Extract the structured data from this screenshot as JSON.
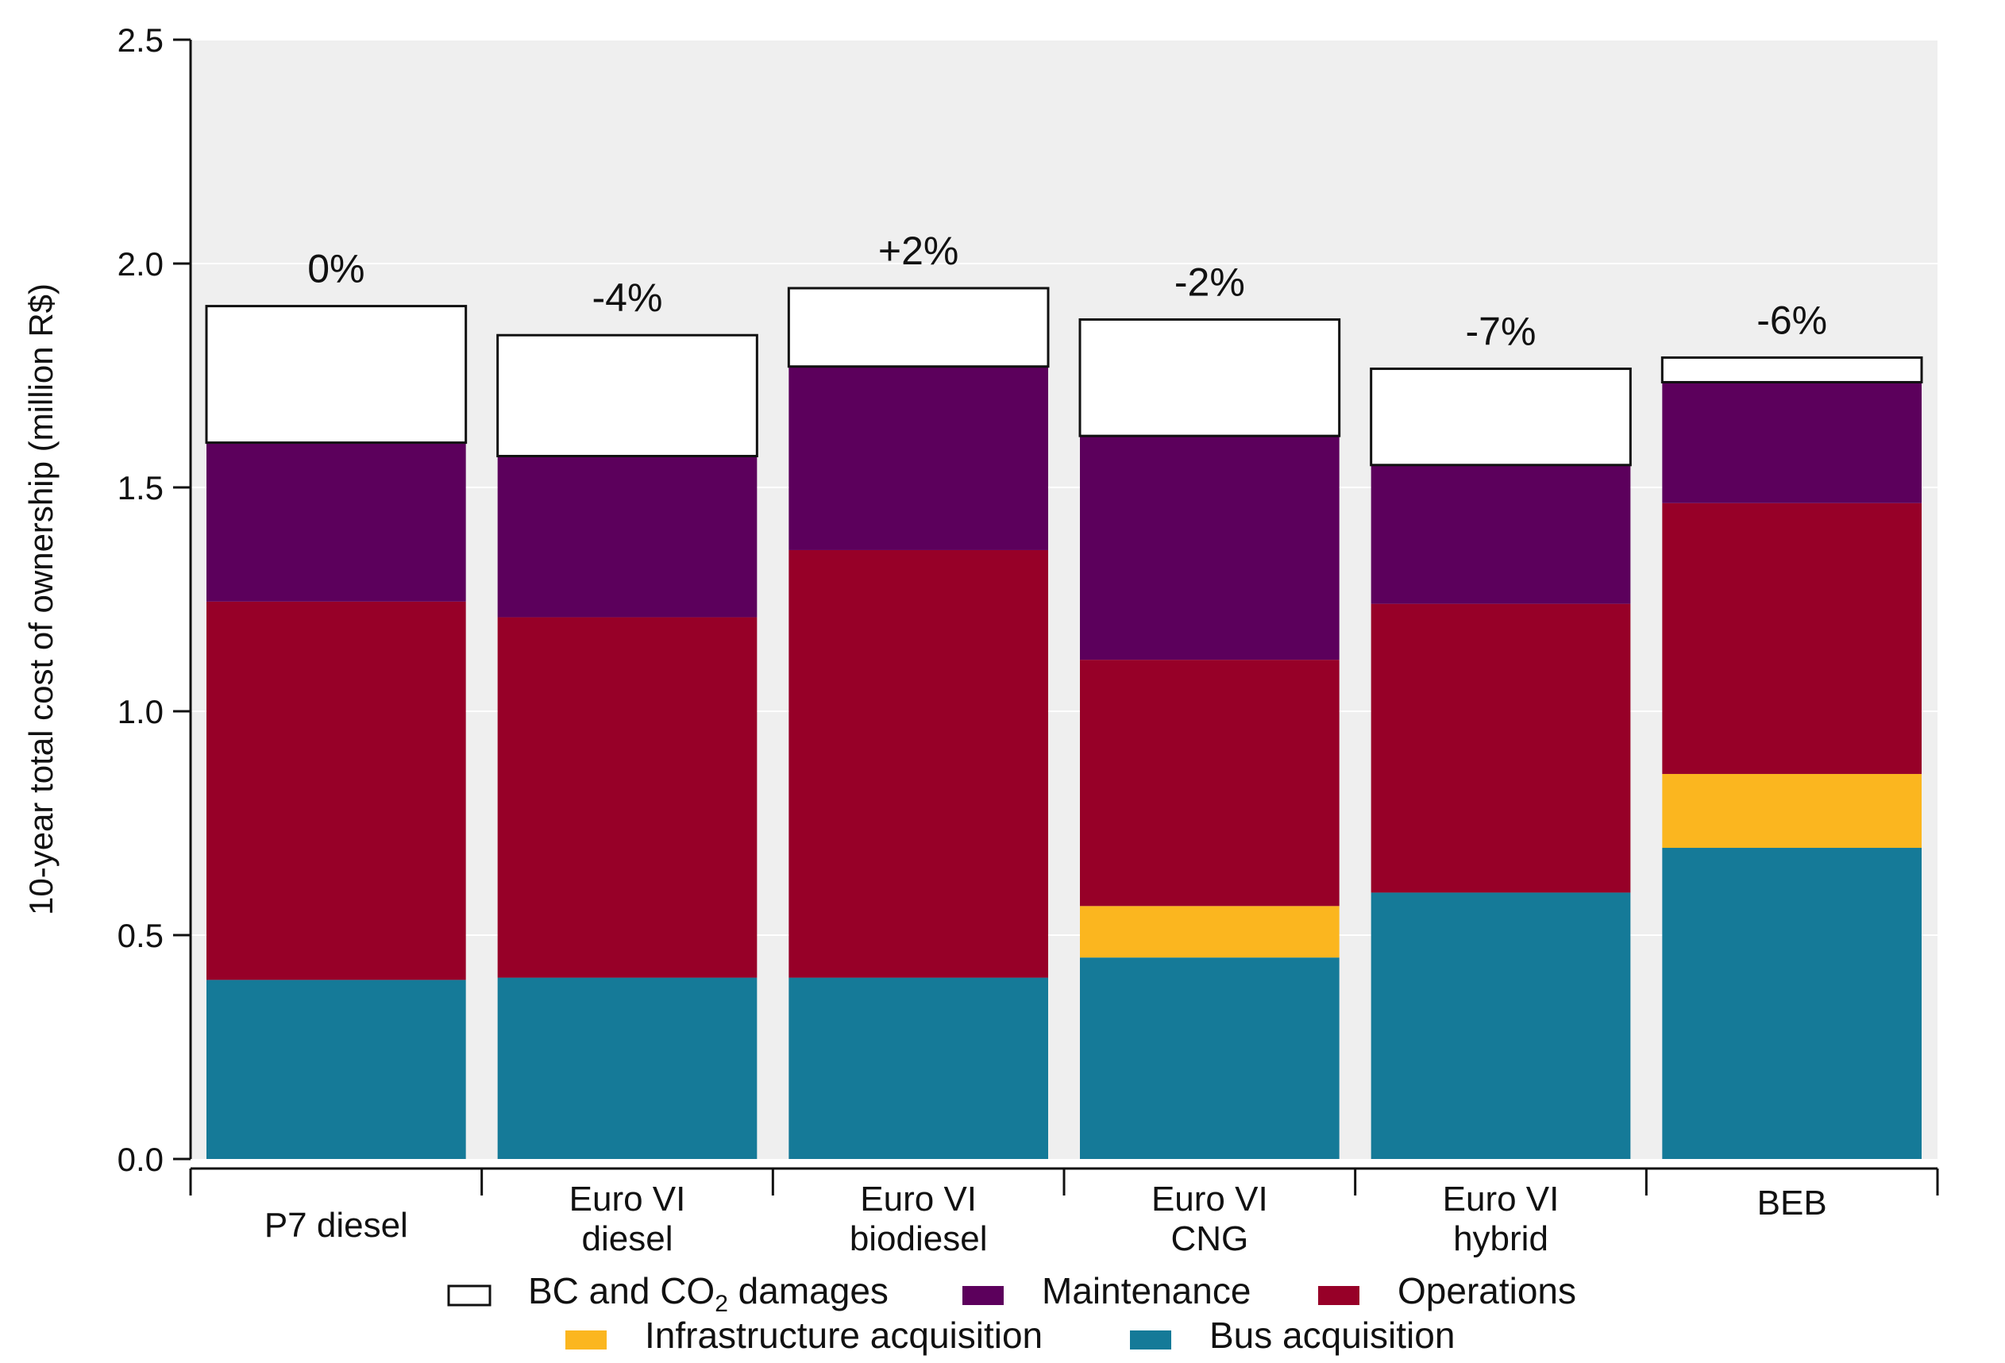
{
  "chart_data": {
    "type": "bar",
    "stacked": true,
    "title": "",
    "xlabel": "",
    "ylabel": "10-year total cost of ownership (million R$)",
    "ylim": [
      0,
      2.5
    ],
    "yticks": [
      "0.0",
      "0.5",
      "1.0",
      "1.5",
      "2.0",
      "2.5"
    ],
    "ytick_values": [
      0,
      0.5,
      1.0,
      1.5,
      2.0,
      2.5
    ],
    "categories": [
      [
        "P7 diesel"
      ],
      [
        "Euro VI",
        "diesel"
      ],
      [
        "Euro VI",
        "biodiesel"
      ],
      [
        "Euro VI",
        "CNG"
      ],
      [
        "Euro VI",
        "hybrid"
      ],
      [
        "BEB"
      ]
    ],
    "percent_labels": [
      "0%",
      "-4%",
      "+2%",
      "-2%",
      "-7%",
      "-6%"
    ],
    "series": [
      {
        "name": "Bus acquisition",
        "color": "#157a98",
        "values": [
          0.4,
          0.405,
          0.405,
          0.45,
          0.595,
          0.695
        ]
      },
      {
        "name": "Infrastructure acquisition",
        "color": "#fbb61f",
        "values": [
          0,
          0,
          0,
          0.115,
          0,
          0.165
        ]
      },
      {
        "name": "Operations",
        "color": "#970028",
        "values": [
          0.845,
          0.805,
          0.955,
          0.55,
          0.645,
          0.605
        ]
      },
      {
        "name": "Maintenance",
        "color": "#5c005c",
        "values": [
          0.355,
          0.36,
          0.41,
          0.5,
          0.31,
          0.27
        ]
      },
      {
        "name": "BC and CO2 damages",
        "color": "#ffffff",
        "values": [
          0.305,
          0.27,
          0.175,
          0.26,
          0.215,
          0.055
        ]
      }
    ],
    "legend": {
      "placement": "bottom",
      "rows": [
        [
          {
            "series": "BC and CO2 damages",
            "prefix": "BC and CO",
            "subscript": "2",
            "suffix": " damages"
          },
          {
            "series": "Maintenance",
            "prefix": "Maintenance"
          },
          {
            "series": "Operations",
            "prefix": "Operations"
          }
        ],
        [
          {
            "series": "Infrastructure acquisition",
            "prefix": "Infrastructure acquisition"
          },
          {
            "series": "Bus acquisition",
            "prefix": "Bus acquisition"
          }
        ]
      ]
    },
    "colors": {
      "plot_background": "#efefef",
      "gridline": "#ffffff",
      "axis": "#111111",
      "bar_outline": "#111111"
    }
  }
}
